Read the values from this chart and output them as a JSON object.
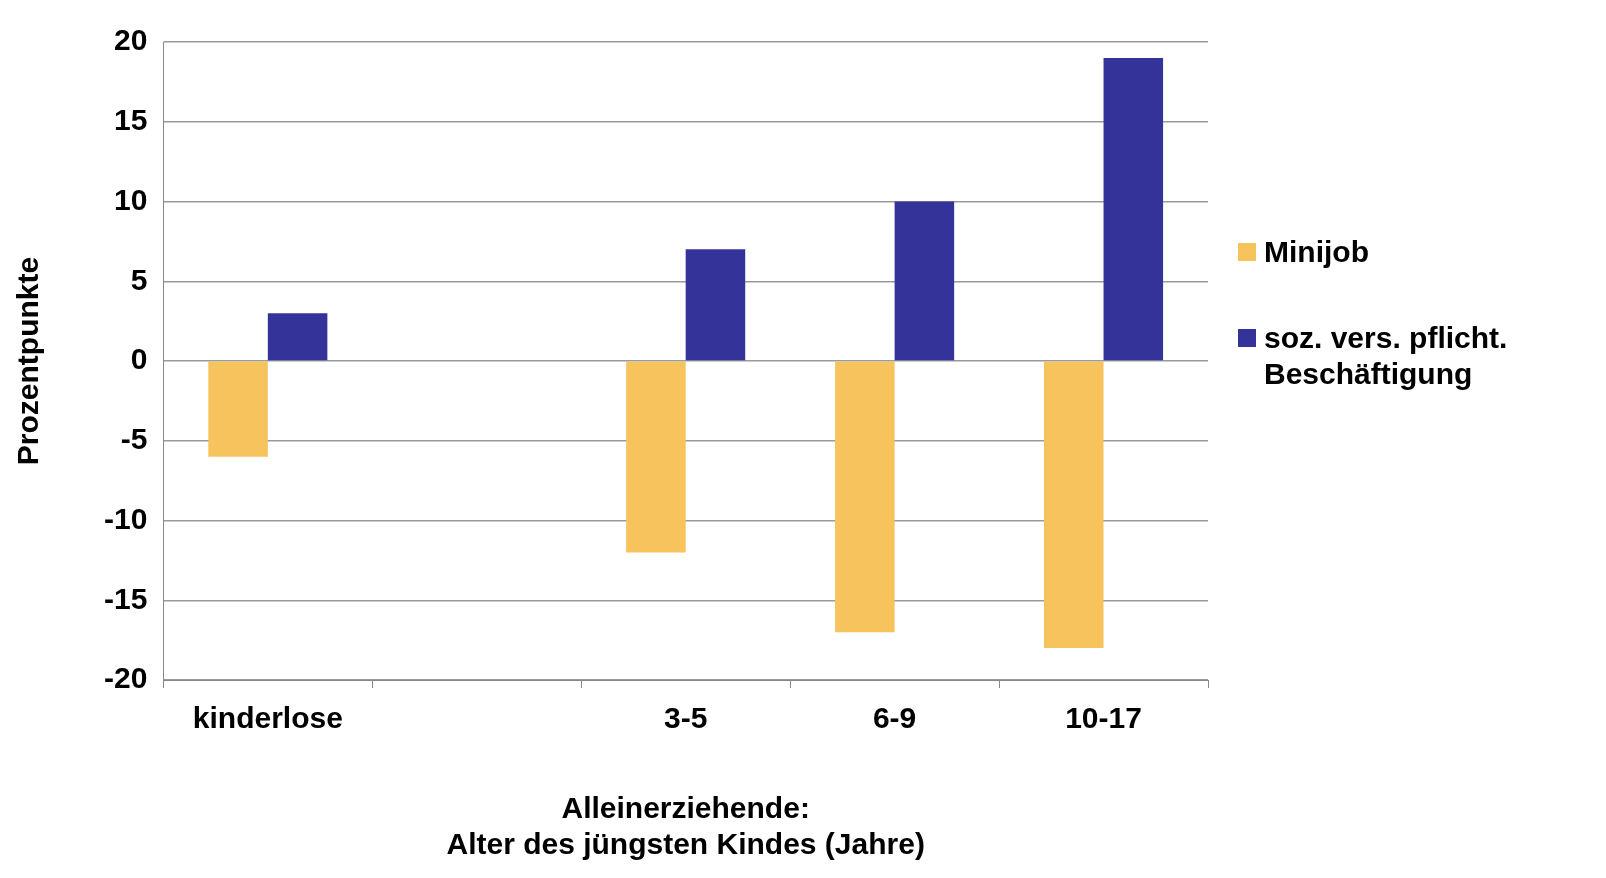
{
  "chart_data": {
    "type": "bar",
    "ylabel": "Prozentpunkte",
    "xlabel": "Alleinerziehende:\nAlter des jüngsten Kindes (Jahre)",
    "categories": [
      "kinderlose",
      null,
      "3-5",
      "6-9",
      "10-17"
    ],
    "series": [
      {
        "name": "Minijob",
        "color": "#f7c35c",
        "values": [
          -6,
          null,
          -12,
          -17,
          -18
        ]
      },
      {
        "name": "soz. vers. pflicht. Beschäftigung",
        "color": "#343399",
        "values": [
          3,
          null,
          7,
          10,
          19
        ]
      }
    ],
    "ylim": [
      -20,
      20
    ],
    "yticks": [
      -20,
      -15,
      -10,
      -5,
      0,
      5,
      10,
      15,
      20
    ],
    "grid": "y",
    "legend": "right"
  }
}
